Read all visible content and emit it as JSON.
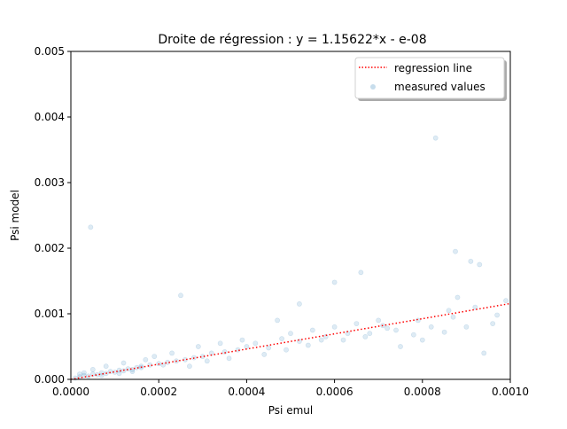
{
  "chart_data": {
    "type": "scatter",
    "title": "Droite de régression : y = 1.15622*x - e-08",
    "xlabel": "Psi emul",
    "ylabel": "Psi model",
    "xlim": [
      0,
      0.001
    ],
    "ylim": [
      0,
      0.005
    ],
    "x_ticks": [
      "0.0000",
      "0.0002",
      "0.0004",
      "0.0006",
      "0.0008",
      "0.0010"
    ],
    "y_ticks": [
      "0.000",
      "0.001",
      "0.002",
      "0.003",
      "0.004",
      "0.005"
    ],
    "grid": false,
    "legend_position": "top-right",
    "series": [
      {
        "name": "regression line",
        "kind": "line",
        "style": "dotted",
        "color": "#ff0000",
        "x": [
          0,
          0.001
        ],
        "y": [
          0,
          0.00115622
        ]
      },
      {
        "name": "measured values",
        "kind": "scatter",
        "color": "#1f77b4",
        "opacity": 0.15,
        "x": [
          1e-05,
          2e-05,
          3e-05,
          4e-05,
          5e-05,
          6e-05,
          7e-05,
          8e-05,
          9e-05,
          0.0001,
          0.00011,
          0.00012,
          0.00013,
          0.00014,
          0.00015,
          0.00016,
          0.00018,
          0.0002,
          0.00022,
          0.00024,
          0.00026,
          0.00028,
          0.0003,
          0.00032,
          0.00035,
          0.00038,
          0.0004,
          0.00042,
          0.00045,
          0.00048,
          0.0005,
          0.00052,
          0.00055,
          0.00058,
          0.0006,
          0.00062,
          0.00065,
          0.00068,
          0.0007,
          0.00072,
          0.00075,
          0.00078,
          0.0008,
          0.00082,
          0.00085,
          0.00087,
          0.00088,
          0.0009,
          0.00092,
          0.00094,
          0.00096,
          0.00099,
          4.5e-05,
          0.00025,
          0.00083,
          0.000875,
          0.00066,
          0.0006,
          0.00052,
          0.00047,
          0.00039,
          0.00034,
          0.00029,
          0.00023,
          0.00019,
          0.00017,
          0.00012,
          8e-05,
          5e-05,
          3e-05,
          2e-05,
          7e-05,
          0.00011,
          0.00014,
          0.00016,
          0.00021,
          0.00027,
          0.00031,
          0.00036,
          0.00044,
          0.00049,
          0.00054,
          0.00057,
          0.00063,
          0.00067,
          0.00071,
          0.00074,
          0.00079,
          0.00086,
          0.00091,
          0.00093,
          0.00097
        ],
        "y": [
          2e-05,
          4e-05,
          6e-05,
          5e-05,
          8e-05,
          7e-05,
          0.0001,
          9e-05,
          0.00012,
          0.00011,
          0.00014,
          0.00013,
          0.00016,
          0.00015,
          0.00018,
          0.0002,
          0.00022,
          0.00024,
          0.00026,
          0.00028,
          0.0003,
          0.00033,
          0.00035,
          0.0004,
          0.00042,
          0.00045,
          0.0005,
          0.00055,
          0.00048,
          0.00062,
          0.0007,
          0.00058,
          0.00075,
          0.00065,
          0.0008,
          0.0006,
          0.00085,
          0.0007,
          0.0009,
          0.00078,
          0.0005,
          0.00068,
          0.0006,
          0.0008,
          0.00072,
          0.00095,
          0.00125,
          0.0008,
          0.0011,
          0.0004,
          0.00085,
          0.0012,
          0.00232,
          0.00128,
          0.00368,
          0.00195,
          0.00163,
          0.00148,
          0.00115,
          0.0009,
          0.0006,
          0.00055,
          0.0005,
          0.0004,
          0.00035,
          0.0003,
          0.00025,
          0.0002,
          0.00015,
          0.0001,
          8e-05,
          6e-05,
          9e-05,
          0.00012,
          0.00018,
          0.00022,
          0.0002,
          0.00028,
          0.00032,
          0.00038,
          0.00045,
          0.00052,
          0.0006,
          0.0007,
          0.00065,
          0.00082,
          0.00075,
          0.0009,
          0.00105,
          0.0018,
          0.00175,
          0.00098
        ]
      }
    ]
  }
}
